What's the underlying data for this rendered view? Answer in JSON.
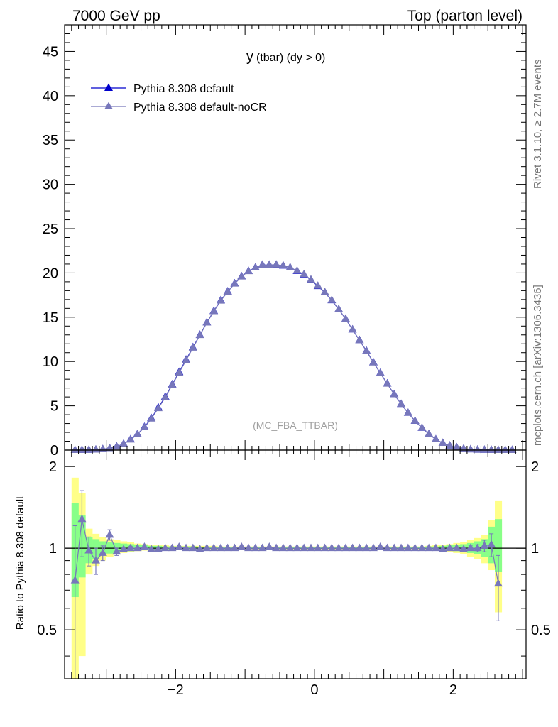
{
  "header": {
    "left": "7000 GeV pp",
    "right": "Top (parton level)"
  },
  "side": {
    "rivet": "Rivet 3.1.10, ≥ 2.7M events",
    "mcplots": "mcplots.cern.ch [arXiv:1306.3436]"
  },
  "chart_data": [
    {
      "type": "line",
      "title": "y (tbar) (dy > 0)",
      "title_main": "y",
      "title_sub": "(tbar) (dy > 0)",
      "watermark": "(MC_FBA_TTBAR)",
      "xlim": [
        -3.6,
        3.05
      ],
      "ylim": [
        0,
        48
      ],
      "y_ticks": [
        0,
        5,
        10,
        15,
        20,
        25,
        30,
        35,
        40,
        45
      ],
      "legend_position": "top-left",
      "x": [
        -3.45,
        -3.35,
        -3.25,
        -3.15,
        -3.05,
        -2.95,
        -2.85,
        -2.75,
        -2.65,
        -2.55,
        -2.45,
        -2.35,
        -2.25,
        -2.15,
        -2.05,
        -1.95,
        -1.85,
        -1.75,
        -1.65,
        -1.55,
        -1.45,
        -1.35,
        -1.25,
        -1.15,
        -1.05,
        -0.95,
        -0.85,
        -0.75,
        -0.65,
        -0.55,
        -0.45,
        -0.35,
        -0.25,
        -0.15,
        -0.05,
        0.05,
        0.15,
        0.25,
        0.35,
        0.45,
        0.55,
        0.65,
        0.75,
        0.85,
        0.95,
        1.05,
        1.15,
        1.25,
        1.35,
        1.45,
        1.55,
        1.65,
        1.75,
        1.85,
        1.95,
        2.05,
        2.15,
        2.25,
        2.35,
        2.45,
        2.55,
        2.65,
        2.75,
        2.85
      ],
      "series": [
        {
          "name": "Pythia 8.308 default",
          "color": "#0000cc",
          "values": [
            0.0,
            0.01,
            0.02,
            0.04,
            0.1,
            0.2,
            0.4,
            0.7,
            1.2,
            1.8,
            2.6,
            3.6,
            4.8,
            6.0,
            7.4,
            8.8,
            10.2,
            11.6,
            13.0,
            14.4,
            15.7,
            16.9,
            17.9,
            18.8,
            19.6,
            20.2,
            20.6,
            20.9,
            20.9,
            20.9,
            20.8,
            20.6,
            20.2,
            19.8,
            19.2,
            18.5,
            17.8,
            16.9,
            15.9,
            14.8,
            13.6,
            12.4,
            11.2,
            9.9,
            8.7,
            7.5,
            6.3,
            5.2,
            4.2,
            3.3,
            2.5,
            1.8,
            1.2,
            0.8,
            0.5,
            0.3,
            0.15,
            0.07,
            0.03,
            0.02,
            0.01,
            0.0,
            0.0,
            0.0
          ]
        },
        {
          "name": "Pythia 8.308 default-noCR",
          "color": "#7777bb",
          "values": [
            0.0,
            0.01,
            0.02,
            0.04,
            0.1,
            0.2,
            0.38,
            0.69,
            1.17,
            1.78,
            2.56,
            3.55,
            4.72,
            5.94,
            7.35,
            8.73,
            10.14,
            11.55,
            12.97,
            14.38,
            15.67,
            16.86,
            17.87,
            18.78,
            19.58,
            20.18,
            20.59,
            20.89,
            20.9,
            20.92,
            20.82,
            20.62,
            20.24,
            19.84,
            19.24,
            18.54,
            17.83,
            16.92,
            15.91,
            14.8,
            13.6,
            12.39,
            11.18,
            9.88,
            8.68,
            7.48,
            6.29,
            5.19,
            4.2,
            3.3,
            2.51,
            1.81,
            1.2,
            0.8,
            0.5,
            0.3,
            0.15,
            0.07,
            0.03,
            0.02,
            0.01,
            0.0,
            0.0,
            0.0
          ]
        }
      ]
    },
    {
      "type": "line",
      "ylabel": "Ratio to Pythia 8.308 default",
      "xlim": [
        -3.6,
        3.05
      ],
      "ylim": [
        0.33,
        2.3
      ],
      "x_ticks": [
        -2,
        0,
        2
      ],
      "y_ticks_labeled": [
        0.5,
        1,
        2
      ],
      "reference_line": 1,
      "x": [
        -3.45,
        -3.35,
        -3.25,
        -3.15,
        -3.05,
        -2.95,
        -2.85,
        -2.75,
        -2.65,
        -2.55,
        -2.45,
        -2.35,
        -2.25,
        -2.15,
        -2.05,
        -1.95,
        -1.85,
        -1.75,
        -1.65,
        -1.55,
        -1.45,
        -1.35,
        -1.25,
        -1.15,
        -1.05,
        -0.95,
        -0.85,
        -0.75,
        -0.65,
        -0.55,
        -0.45,
        -0.35,
        -0.25,
        -0.15,
        -0.05,
        0.05,
        0.15,
        0.25,
        0.35,
        0.45,
        0.55,
        0.65,
        0.75,
        0.85,
        0.95,
        1.05,
        1.15,
        1.25,
        1.35,
        1.45,
        1.55,
        1.65,
        1.75,
        1.85,
        1.95,
        2.05,
        2.15,
        2.25,
        2.35,
        2.45,
        2.55,
        2.65
      ],
      "band_yellow": [
        [
          0.33,
          1.82
        ],
        [
          0.4,
          1.6
        ],
        [
          0.8,
          1.18
        ],
        [
          0.86,
          1.13
        ],
        [
          0.9,
          1.1
        ],
        [
          0.93,
          1.08
        ],
        [
          0.95,
          1.07
        ],
        [
          0.96,
          1.06
        ],
        [
          0.97,
          1.05
        ],
        [
          0.975,
          1.04
        ],
        [
          0.98,
          1.035
        ],
        [
          0.98,
          1.03
        ],
        [
          0.985,
          1.025
        ],
        [
          0.985,
          1.025
        ],
        [
          0.985,
          1.02
        ],
        [
          0.99,
          1.02
        ],
        [
          0.99,
          1.02
        ],
        [
          0.99,
          1.02
        ],
        [
          0.99,
          1.02
        ],
        [
          0.99,
          1.02
        ],
        [
          0.99,
          1.02
        ],
        [
          0.99,
          1.015
        ],
        [
          0.99,
          1.015
        ],
        [
          0.99,
          1.015
        ],
        [
          0.99,
          1.015
        ],
        [
          0.99,
          1.015
        ],
        [
          0.99,
          1.015
        ],
        [
          0.99,
          1.015
        ],
        [
          0.99,
          1.015
        ],
        [
          0.99,
          1.015
        ],
        [
          0.99,
          1.015
        ],
        [
          0.99,
          1.015
        ],
        [
          0.99,
          1.015
        ],
        [
          0.99,
          1.015
        ],
        [
          0.99,
          1.015
        ],
        [
          0.99,
          1.015
        ],
        [
          0.99,
          1.015
        ],
        [
          0.99,
          1.015
        ],
        [
          0.99,
          1.015
        ],
        [
          0.99,
          1.015
        ],
        [
          0.99,
          1.015
        ],
        [
          0.99,
          1.015
        ],
        [
          0.99,
          1.015
        ],
        [
          0.99,
          1.015
        ],
        [
          0.99,
          1.015
        ],
        [
          0.99,
          1.015
        ],
        [
          0.99,
          1.015
        ],
        [
          0.99,
          1.015
        ],
        [
          0.99,
          1.015
        ],
        [
          0.99,
          1.015
        ],
        [
          0.99,
          1.015
        ],
        [
          0.985,
          1.02
        ],
        [
          0.98,
          1.025
        ],
        [
          0.975,
          1.03
        ],
        [
          0.97,
          1.035
        ],
        [
          0.96,
          1.045
        ],
        [
          0.95,
          1.055
        ],
        [
          0.93,
          1.07
        ],
        [
          0.91,
          1.09
        ],
        [
          0.88,
          1.12
        ],
        [
          0.83,
          1.27
        ],
        [
          0.58,
          1.5
        ]
      ],
      "band_green": [
        [
          0.66,
          1.47
        ],
        [
          0.78,
          1.32
        ],
        [
          0.88,
          1.1
        ],
        [
          0.91,
          1.08
        ],
        [
          0.94,
          1.06
        ],
        [
          0.955,
          1.05
        ],
        [
          0.965,
          1.045
        ],
        [
          0.97,
          1.04
        ],
        [
          0.975,
          1.035
        ],
        [
          0.98,
          1.03
        ],
        [
          0.985,
          1.025
        ],
        [
          0.985,
          1.02
        ],
        [
          0.99,
          1.02
        ],
        [
          0.99,
          1.015
        ],
        [
          0.99,
          1.015
        ],
        [
          0.99,
          1.015
        ],
        [
          0.99,
          1.015
        ],
        [
          0.99,
          1.015
        ],
        [
          0.995,
          1.01
        ],
        [
          0.995,
          1.01
        ],
        [
          0.995,
          1.01
        ],
        [
          0.995,
          1.01
        ],
        [
          0.995,
          1.01
        ],
        [
          0.995,
          1.01
        ],
        [
          0.995,
          1.01
        ],
        [
          0.995,
          1.01
        ],
        [
          0.995,
          1.01
        ],
        [
          0.995,
          1.01
        ],
        [
          0.995,
          1.01
        ],
        [
          0.995,
          1.01
        ],
        [
          0.995,
          1.01
        ],
        [
          0.995,
          1.01
        ],
        [
          0.995,
          1.01
        ],
        [
          0.995,
          1.01
        ],
        [
          0.995,
          1.01
        ],
        [
          0.995,
          1.01
        ],
        [
          0.995,
          1.01
        ],
        [
          0.995,
          1.01
        ],
        [
          0.995,
          1.01
        ],
        [
          0.995,
          1.01
        ],
        [
          0.995,
          1.01
        ],
        [
          0.995,
          1.01
        ],
        [
          0.995,
          1.01
        ],
        [
          0.995,
          1.01
        ],
        [
          0.995,
          1.01
        ],
        [
          0.995,
          1.01
        ],
        [
          0.995,
          1.01
        ],
        [
          0.995,
          1.01
        ],
        [
          0.995,
          1.01
        ],
        [
          0.995,
          1.01
        ],
        [
          0.995,
          1.01
        ],
        [
          0.99,
          1.015
        ],
        [
          0.99,
          1.015
        ],
        [
          0.985,
          1.02
        ],
        [
          0.98,
          1.025
        ],
        [
          0.975,
          1.03
        ],
        [
          0.97,
          1.035
        ],
        [
          0.96,
          1.045
        ],
        [
          0.95,
          1.06
        ],
        [
          0.93,
          1.08
        ],
        [
          0.88,
          1.2
        ],
        [
          0.82,
          1.28
        ]
      ],
      "series": [
        {
          "name": "Pythia 8.308 default-noCR",
          "color": "#7777bb",
          "values": [
            0.76,
            1.28,
            0.98,
            0.9,
            0.96,
            1.12,
            0.97,
            0.99,
            1.0,
            1.0,
            1.01,
            0.99,
            0.99,
            1.0,
            1.0,
            1.01,
            1.0,
            1.0,
            0.99,
            1.0,
            1.0,
            1.0,
            1.0,
            1.0,
            1.01,
            1.0,
            1.0,
            1.0,
            1.01,
            1.0,
            1.0,
            1.0,
            1.0,
            1.0,
            1.0,
            1.0,
            1.0,
            1.0,
            1.0,
            1.0,
            1.0,
            1.0,
            1.0,
            1.0,
            1.01,
            1.0,
            1.0,
            1.0,
            1.0,
            1.0,
            1.0,
            1.0,
            1.0,
            0.99,
            1.0,
            1.0,
            0.99,
            1.0,
            1.0,
            1.02,
            1.03,
            0.74
          ],
          "errors": [
            0.45,
            0.35,
            0.12,
            0.1,
            0.06,
            0.05,
            0.03,
            0.02,
            0.015,
            0.01,
            0.01,
            0.005,
            0.005,
            0.005,
            0.005,
            0.005,
            0.005,
            0.005,
            0.005,
            0.005,
            0.005,
            0.005,
            0.005,
            0.005,
            0.005,
            0.005,
            0.005,
            0.005,
            0.005,
            0.005,
            0.005,
            0.005,
            0.005,
            0.005,
            0.005,
            0.005,
            0.005,
            0.005,
            0.005,
            0.005,
            0.005,
            0.005,
            0.005,
            0.005,
            0.005,
            0.005,
            0.005,
            0.005,
            0.005,
            0.005,
            0.005,
            0.005,
            0.005,
            0.005,
            0.01,
            0.01,
            0.015,
            0.02,
            0.03,
            0.05,
            0.1,
            0.2
          ]
        }
      ]
    }
  ]
}
